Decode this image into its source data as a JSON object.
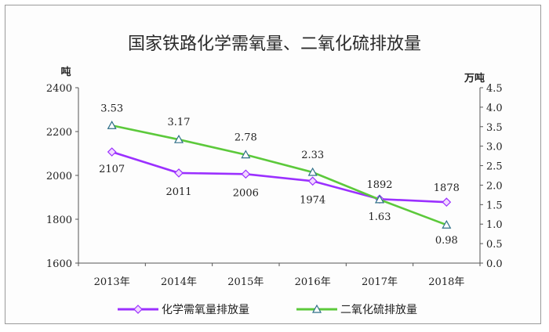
{
  "chart_data": {
    "type": "line",
    "title": "国家铁路化学需氧量、二氧化硫排放量",
    "categories": [
      "2013年",
      "2014年",
      "2015年",
      "2016年",
      "2017年",
      "2018年"
    ],
    "left_axis": {
      "unit": "吨",
      "range": [
        1600,
        2400
      ],
      "ticks": [
        "1600",
        "1800",
        "2000",
        "2200",
        "2400"
      ]
    },
    "right_axis": {
      "unit": "万吨",
      "range": [
        0,
        4.5
      ],
      "ticks": [
        "0.0",
        "0.5",
        "1.0",
        "1.5",
        "2.0",
        "2.5",
        "3.0",
        "3.5",
        "4.0",
        "4.5"
      ]
    },
    "series": [
      {
        "name": "化学需氧量排放量",
        "axis": "left",
        "color": "#9b30ff",
        "marker": "diamond",
        "values": [
          2107,
          2011,
          2006,
          1974,
          1892,
          1878
        ],
        "labels": [
          "2107",
          "2011",
          "2006",
          "1974",
          "1892",
          "1878"
        ]
      },
      {
        "name": "二氧化硫排放量",
        "axis": "right",
        "color": "#5cc93b",
        "marker": "triangle",
        "values": [
          3.53,
          3.17,
          2.78,
          2.33,
          1.63,
          0.98
        ],
        "labels": [
          "3.53",
          "3.17",
          "2.78",
          "2.33",
          "1.63",
          "0.98"
        ]
      }
    ],
    "grid": false,
    "legend_position": "bottom"
  }
}
